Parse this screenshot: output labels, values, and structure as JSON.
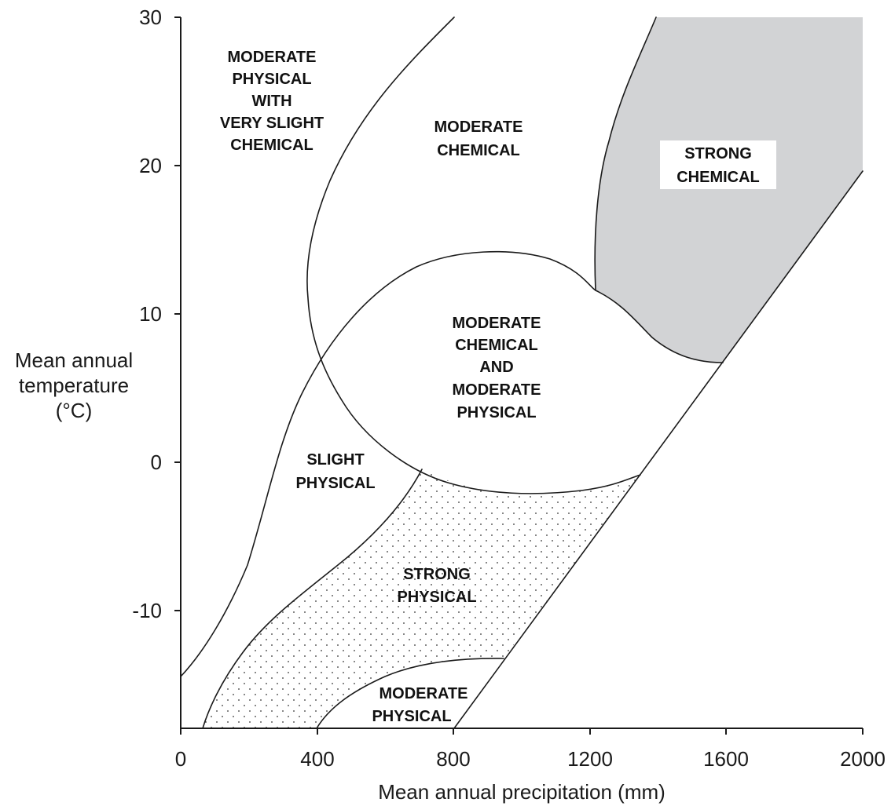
{
  "diagram": {
    "x_axis": {
      "title": "Mean annual precipitation (mm)",
      "ticks": [
        "0",
        "400",
        "800",
        "1200",
        "1600",
        "2000"
      ],
      "range": [
        0,
        2000
      ],
      "unit": "mm"
    },
    "y_axis": {
      "title_lines": [
        "Mean annual",
        "temperature",
        "(°C)"
      ],
      "ticks": [
        "30",
        "20",
        "10",
        "0",
        "-10"
      ],
      "range": [
        -18,
        30
      ],
      "unit": "°C"
    },
    "regions": [
      {
        "name": "moderate-physical-very-slight-chemical",
        "lines": [
          "MODERATE",
          "PHYSICAL",
          "WITH",
          "VERY SLIGHT",
          "CHEMICAL"
        ],
        "fill": "#ffffff"
      },
      {
        "name": "moderate-chemical",
        "lines": [
          "MODERATE",
          "CHEMICAL"
        ],
        "fill": "#ffffff"
      },
      {
        "name": "strong-chemical",
        "lines": [
          "STRONG",
          "CHEMICAL"
        ],
        "fill": "#d2d3d5"
      },
      {
        "name": "moderate-chemical-and-physical",
        "lines": [
          "MODERATE",
          "CHEMICAL",
          "AND",
          "MODERATE",
          "PHYSICAL"
        ],
        "fill": "#ffffff"
      },
      {
        "name": "slight-physical",
        "lines": [
          "SLIGHT",
          "PHYSICAL"
        ],
        "fill": "#ffffff"
      },
      {
        "name": "strong-physical",
        "lines": [
          "STRONG",
          "PHYSICAL"
        ],
        "fill": "stippled"
      },
      {
        "name": "moderate-physical",
        "lines": [
          "MODERATE",
          "PHYSICAL"
        ],
        "fill": "#ffffff"
      }
    ],
    "colors": {
      "strong_chemical_fill": "#d2d3d5",
      "stipple_dot": "#333333",
      "line": "#1a1a1a"
    }
  }
}
